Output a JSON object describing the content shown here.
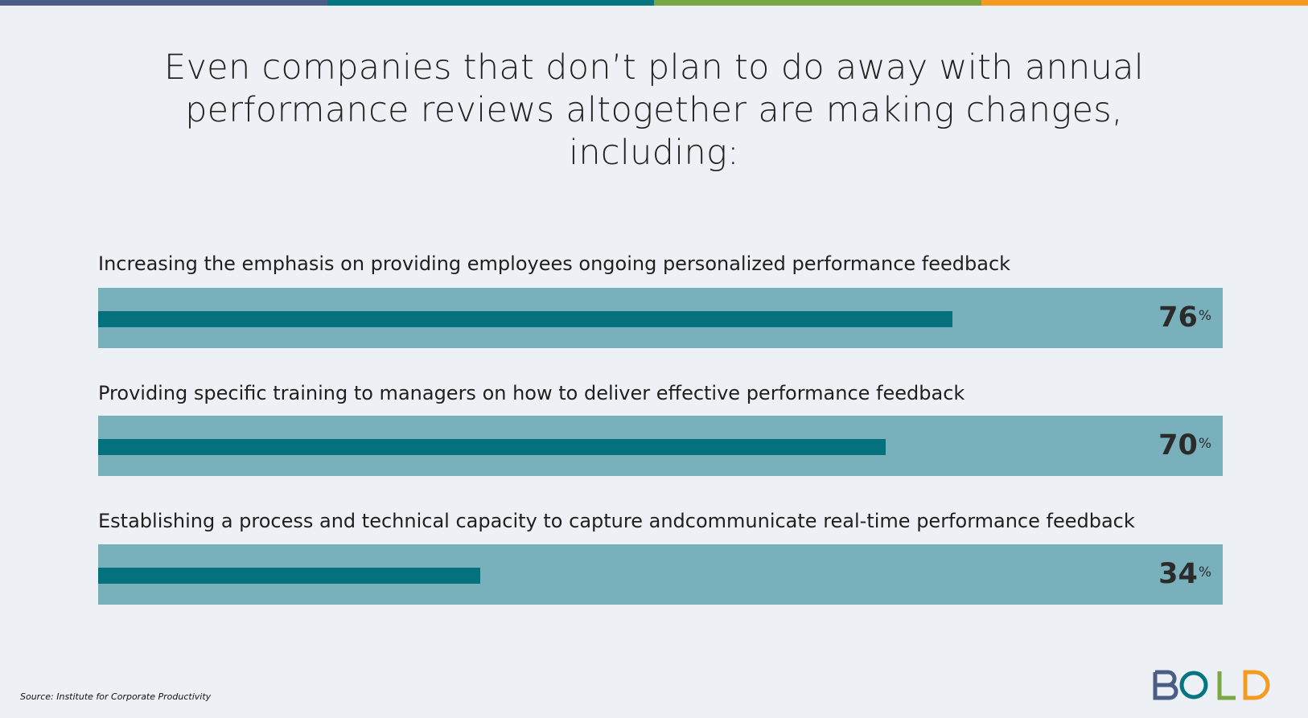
{
  "colors": {
    "background": "#edf0f4",
    "stripe": [
      "#4a5d86",
      "#05757f",
      "#79a744",
      "#f59b1f"
    ],
    "track": "#78b1bb",
    "fill": "#05717c",
    "logo_b": "#4a5d86",
    "logo_o": "#05757f",
    "logo_l": "#79a744",
    "logo_d": "#f59b1f"
  },
  "title": "Even companies that don’t plan to do away with annual performance reviews altogether are making changes, including:",
  "chart_data": {
    "type": "bar",
    "orientation": "horizontal",
    "categories": [
      "Increasing the emphasis on providing employees ongoing personalized performance feedback",
      "Providing specific training to managers on how to deliver effective performance feedback",
      "Establishing a process and technical capacity to capture andcommunicate real-time performance feedback"
    ],
    "values": [
      76,
      70,
      34
    ],
    "value_labels": [
      "76",
      "70",
      "34"
    ],
    "unit": "%",
    "xlim": [
      0,
      100
    ],
    "grid": false,
    "legend": "none"
  },
  "source": "Source: Institute for Corporate Productivity",
  "logo": {
    "letters": [
      "B",
      "O",
      "L",
      "D"
    ],
    "text": "BOLD",
    "icon": "bold-logo-icon"
  }
}
